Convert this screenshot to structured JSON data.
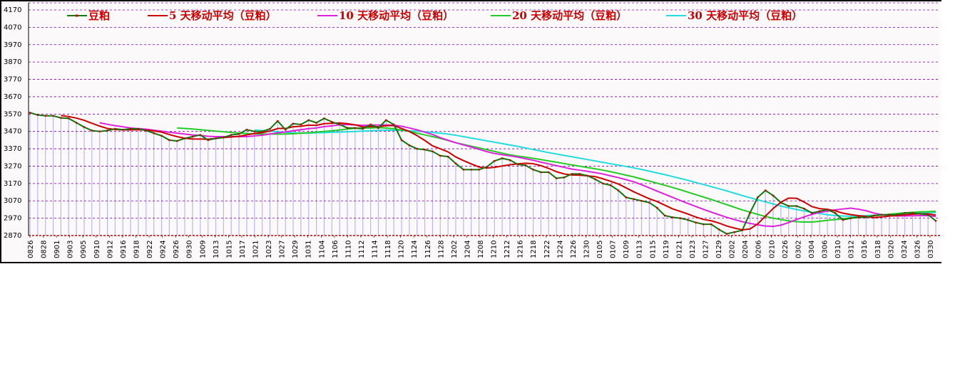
{
  "chart_data": {
    "type": "line",
    "y_range": [
      2870,
      4170
    ],
    "yticks": [
      2870,
      2970,
      3070,
      3170,
      3270,
      3370,
      3470,
      3570,
      3670,
      3770,
      3870,
      3970,
      4070,
      4170
    ],
    "xtick_labels": [
      "0826",
      "0828",
      "0901",
      "0903",
      "0905",
      "0910",
      "0912",
      "0916",
      "0918",
      "0922",
      "0924",
      "0926",
      "0930",
      "1009",
      "1013",
      "1015",
      "1017",
      "1021",
      "1023",
      "1027",
      "1029",
      "1031",
      "1104",
      "1106",
      "1110",
      "1112",
      "1114",
      "1118",
      "1120",
      "1124",
      "1126",
      "1128",
      "1202",
      "1204",
      "1208",
      "1210",
      "1212",
      "1216",
      "1218",
      "1222",
      "1224",
      "1226",
      "1230",
      "0105",
      "0107",
      "0109",
      "0113",
      "0115",
      "0119",
      "0121",
      "0123",
      "0127",
      "0129",
      "0202",
      "0204",
      "0206",
      "0210",
      "0226",
      "0302",
      "0304",
      "0306",
      "0310",
      "0312",
      "0316",
      "0318",
      "0320",
      "0324",
      "0326",
      "0330"
    ],
    "grid": true,
    "legend_position": "top",
    "colors": {
      "price": "#0a7a0a",
      "price_marker": "#cc0000",
      "ma5": "#cc0000",
      "ma10": "#dd22dd",
      "ma20": "#22cc22",
      "ma30": "#22dddd",
      "grid": "#7a00a0",
      "bars": "#b8b8f0",
      "legend_text": "#cc0000"
    },
    "series": [
      {
        "name": "豆粕",
        "key": "price",
        "values": [
          3578,
          3565,
          3560,
          3560,
          3548,
          3545,
          3520,
          3495,
          3475,
          3470,
          3475,
          3485,
          3480,
          3485,
          3485,
          3475,
          3460,
          3445,
          3420,
          3415,
          3430,
          3440,
          3450,
          3420,
          3430,
          3435,
          3450,
          3455,
          3480,
          3470,
          3470,
          3485,
          3530,
          3480,
          3515,
          3510,
          3535,
          3520,
          3545,
          3525,
          3510,
          3490,
          3490,
          3485,
          3510,
          3490,
          3535,
          3510,
          3420,
          3390,
          3370,
          3365,
          3355,
          3330,
          3325,
          3285,
          3250,
          3250,
          3250,
          3265,
          3300,
          3315,
          3305,
          3280,
          3275,
          3250,
          3235,
          3235,
          3200,
          3205,
          3225,
          3225,
          3215,
          3195,
          3170,
          3160,
          3130,
          3090,
          3080,
          3070,
          3060,
          3030,
          2985,
          2975,
          2970,
          2960,
          2945,
          2935,
          2935,
          2905,
          2880,
          2890,
          2900,
          3000,
          3090,
          3130,
          3100,
          3060,
          3040,
          3040,
          3025,
          3000,
          3010,
          3020,
          3000,
          2960,
          2970,
          2975,
          2975,
          2985,
          2990,
          2990,
          2990,
          3000,
          3000,
          2995,
          2990,
          2955
        ]
      },
      {
        "name": "5 天移动平均（豆粕）",
        "key": "ma5",
        "values": [
          null,
          null,
          null,
          null,
          3562,
          3556,
          3547,
          3534,
          3517,
          3501,
          3487,
          3481,
          3479,
          3479,
          3480,
          3478,
          3473,
          3466,
          3452,
          3440,
          3431,
          3426,
          3426,
          3425,
          3430,
          3435,
          3438,
          3442,
          3450,
          3458,
          3463,
          3472,
          3487,
          3487,
          3497,
          3500,
          3506,
          3505,
          3515,
          3517,
          3519,
          3515,
          3508,
          3496,
          3498,
          3497,
          3503,
          3504,
          3487,
          3470,
          3446,
          3418,
          3387,
          3370,
          3352,
          3323,
          3302,
          3283,
          3265,
          3259,
          3263,
          3271,
          3278,
          3283,
          3287,
          3284,
          3273,
          3257,
          3238,
          3225,
          3219,
          3218,
          3214,
          3210,
          3197,
          3183,
          3167,
          3145,
          3122,
          3102,
          3082,
          3066,
          3045,
          3024,
          3009,
          2994,
          2977,
          2963,
          2955,
          2942,
          2925,
          2913,
          2903,
          2908,
          2937,
          2982,
          3026,
          3062,
          3086,
          3085,
          3063,
          3037,
          3025,
          3021,
          3013,
          2999,
          2991,
          2985,
          2980,
          2973,
          2977,
          2982,
          2986,
          2989,
          2993,
          2995,
          2995,
          2988
        ]
      },
      {
        "name": "10 天移动平均（豆粕）",
        "key": "ma10",
        "values": [
          null,
          null,
          null,
          null,
          null,
          null,
          null,
          null,
          null,
          3520,
          3511,
          3503,
          3497,
          3490,
          3486,
          3483,
          3477,
          3472,
          3465,
          3460,
          3455,
          3450,
          3447,
          3442,
          3440,
          3440,
          3440,
          3440,
          3440,
          3444,
          3448,
          3455,
          3462,
          3467,
          3474,
          3480,
          3486,
          3490,
          3498,
          3502,
          3508,
          3510,
          3507,
          3505,
          3506,
          3507,
          3507,
          3506,
          3500,
          3490,
          3479,
          3466,
          3452,
          3434,
          3419,
          3405,
          3392,
          3380,
          3367,
          3354,
          3343,
          3336,
          3329,
          3322,
          3313,
          3304,
          3293,
          3283,
          3273,
          3263,
          3253,
          3247,
          3240,
          3233,
          3225,
          3214,
          3204,
          3192,
          3180,
          3163,
          3145,
          3126,
          3108,
          3090,
          3072,
          3055,
          3038,
          3021,
          3005,
          2990,
          2975,
          2962,
          2950,
          2940,
          2932,
          2925,
          2923,
          2930,
          2945,
          2962,
          2978,
          2992,
          3003,
          3010,
          3018,
          3023,
          3028,
          3022,
          3013,
          3000,
          2990,
          2985,
          2983,
          2983,
          2984,
          2985,
          2985,
          2980
        ]
      },
      {
        "name": "20 天移动平均（豆粕）",
        "key": "ma20",
        "values": [
          null,
          null,
          null,
          null,
          null,
          null,
          null,
          null,
          null,
          null,
          null,
          null,
          null,
          null,
          null,
          null,
          null,
          null,
          null,
          3490,
          3487,
          3484,
          3480,
          3476,
          3472,
          3468,
          3464,
          3460,
          3458,
          3456,
          3455,
          3455,
          3455,
          3455,
          3457,
          3460,
          3462,
          3466,
          3470,
          3474,
          3478,
          3484,
          3488,
          3490,
          3490,
          3492,
          3490,
          3485,
          3478,
          3470,
          3460,
          3450,
          3440,
          3430,
          3418,
          3405,
          3395,
          3385,
          3375,
          3365,
          3355,
          3345,
          3335,
          3328,
          3322,
          3315,
          3308,
          3300,
          3293,
          3285,
          3277,
          3270,
          3262,
          3255,
          3247,
          3238,
          3228,
          3218,
          3208,
          3196,
          3184,
          3172,
          3160,
          3147,
          3134,
          3120,
          3106,
          3092,
          3078,
          3063,
          3048,
          3033,
          3018,
          3005,
          2992,
          2980,
          2970,
          2962,
          2955,
          2950,
          2948,
          2948,
          2952,
          2958,
          2962,
          2967,
          2972,
          2976,
          2980,
          2984,
          2988,
          2993,
          2997,
          3001,
          3004,
          3007,
          3008,
          3010
        ]
      },
      {
        "name": "30 天移动平均（豆粕）",
        "key": "ma30",
        "values": [
          null,
          null,
          null,
          null,
          null,
          null,
          null,
          null,
          null,
          null,
          null,
          null,
          null,
          null,
          null,
          null,
          null,
          null,
          null,
          null,
          null,
          null,
          null,
          null,
          null,
          null,
          null,
          null,
          null,
          3478,
          3475,
          3472,
          3468,
          3465,
          3462,
          3460,
          3460,
          3462,
          3463,
          3465,
          3466,
          3468,
          3470,
          3472,
          3474,
          3476,
          3477,
          3477,
          3476,
          3474,
          3472,
          3468,
          3464,
          3460,
          3455,
          3448,
          3440,
          3432,
          3424,
          3416,
          3408,
          3400,
          3392,
          3384,
          3375,
          3366,
          3357,
          3348,
          3340,
          3332,
          3324,
          3316,
          3308,
          3300,
          3292,
          3284,
          3276,
          3268,
          3260,
          3251,
          3241,
          3231,
          3221,
          3210,
          3199,
          3188,
          3176,
          3164,
          3152,
          3140,
          3127,
          3114,
          3101,
          3088,
          3076,
          3064,
          3052,
          3040,
          3030,
          3020,
          3012,
          3004,
          2997,
          2990,
          2985,
          2983,
          2982,
          2983,
          2985,
          2987,
          2988,
          2990,
          2993,
          2995,
          2997,
          3000,
          3002,
          3003
        ]
      }
    ]
  }
}
